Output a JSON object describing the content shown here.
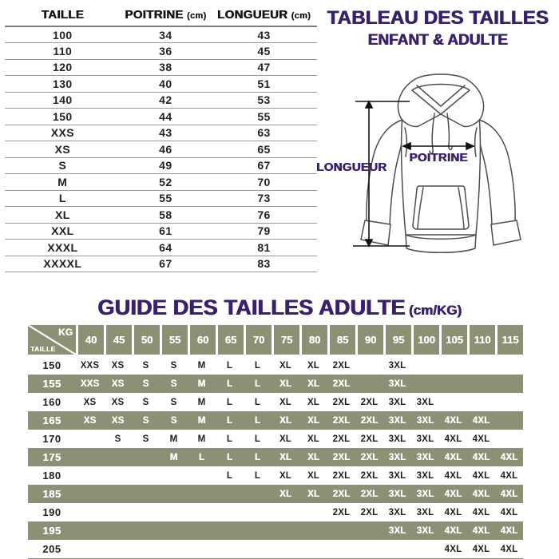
{
  "colors": {
    "purple": "#38206e",
    "green": "#8a9175",
    "table_line": "#9a9a9a"
  },
  "size_table": {
    "headers": [
      {
        "label": "TAILLE",
        "unit": ""
      },
      {
        "label": "POITRINE",
        "unit": "(cm)"
      },
      {
        "label": "LONGUEUR",
        "unit": "(cm)"
      }
    ],
    "rows": [
      [
        "100",
        "34",
        "43"
      ],
      [
        "110",
        "36",
        "45"
      ],
      [
        "120",
        "38",
        "47"
      ],
      [
        "130",
        "40",
        "51"
      ],
      [
        "140",
        "42",
        "53"
      ],
      [
        "150",
        "44",
        "55"
      ],
      [
        "XXS",
        "43",
        "63"
      ],
      [
        "XS",
        "46",
        "65"
      ],
      [
        "S",
        "49",
        "67"
      ],
      [
        "M",
        "52",
        "70"
      ],
      [
        "L",
        "55",
        "73"
      ],
      [
        "XL",
        "58",
        "76"
      ],
      [
        "XXL",
        "61",
        "79"
      ],
      [
        "XXXL",
        "64",
        "81"
      ],
      [
        "XXXXL",
        "67",
        "83"
      ]
    ]
  },
  "header": {
    "title_line1": "TABLEAU DES TAILLES",
    "title_line2": "ENFANT & ADULTE"
  },
  "diagram": {
    "length_label": "LONGUEUR",
    "chest_label": "POITRINE"
  },
  "guide": {
    "title": "GUIDE DES TAILLES ADULTE",
    "title_suffix": "(cm/KG)",
    "corner_top": "KG",
    "corner_bottom": "TAILLE",
    "weights": [
      "40",
      "45",
      "50",
      "55",
      "60",
      "65",
      "70",
      "75",
      "80",
      "85",
      "90",
      "95",
      "100",
      "105",
      "110",
      "115"
    ],
    "rows": [
      {
        "height": "150",
        "cells": [
          "XXS",
          "XS",
          "S",
          "S",
          "M",
          "L",
          "L",
          "XL",
          "XL",
          "2XL",
          "",
          "3XL",
          "",
          "",
          "",
          ""
        ]
      },
      {
        "height": "155",
        "cells": [
          "XXS",
          "XS",
          "S",
          "S",
          "M",
          "L",
          "L",
          "XL",
          "XL",
          "2XL",
          "",
          "3XL",
          "",
          "",
          "",
          ""
        ]
      },
      {
        "height": "160",
        "cells": [
          "XS",
          "XS",
          "S",
          "S",
          "M",
          "L",
          "L",
          "XL",
          "XL",
          "2XL",
          "2XL",
          "3XL",
          "3XL",
          "",
          "",
          ""
        ]
      },
      {
        "height": "165",
        "cells": [
          "XS",
          "XS",
          "S",
          "S",
          "M",
          "L",
          "L",
          "XL",
          "XL",
          "2XL",
          "2XL",
          "3XL",
          "3XL",
          "4XL",
          "4XL",
          ""
        ]
      },
      {
        "height": "170",
        "cells": [
          "",
          "S",
          "S",
          "M",
          "M",
          "L",
          "L",
          "XL",
          "XL",
          "2XL",
          "2XL",
          "3XL",
          "3XL",
          "4XL",
          "4XL",
          ""
        ]
      },
      {
        "height": "175",
        "cells": [
          "",
          "",
          "",
          "M",
          "L",
          "L",
          "L",
          "XL",
          "XL",
          "2XL",
          "2XL",
          "3XL",
          "3XL",
          "4XL",
          "4XL",
          "4XL"
        ]
      },
      {
        "height": "180",
        "cells": [
          "",
          "",
          "",
          "",
          "",
          "L",
          "L",
          "XL",
          "XL",
          "2XL",
          "2XL",
          "3XL",
          "3XL",
          "4XL",
          "4XL",
          "4XL"
        ]
      },
      {
        "height": "185",
        "cells": [
          "",
          "",
          "",
          "",
          "",
          "",
          "",
          "XL",
          "XL",
          "2XL",
          "2XL",
          "3XL",
          "3XL",
          "4XL",
          "4XL",
          "4XL"
        ]
      },
      {
        "height": "190",
        "cells": [
          "",
          "",
          "",
          "",
          "",
          "",
          "",
          "",
          "",
          "2XL",
          "2XL",
          "3XL",
          "3XL",
          "4XL",
          "4XL",
          "4XL"
        ]
      },
      {
        "height": "195",
        "cells": [
          "",
          "",
          "",
          "",
          "",
          "",
          "",
          "",
          "",
          "",
          "",
          "3XL",
          "3XL",
          "4XL",
          "4XL",
          "4XL"
        ]
      },
      {
        "height": "205",
        "cells": [
          "",
          "",
          "",
          "",
          "",
          "",
          "",
          "",
          "",
          "",
          "",
          "",
          "",
          "4XL",
          "4XL",
          "4XL"
        ]
      }
    ]
  }
}
